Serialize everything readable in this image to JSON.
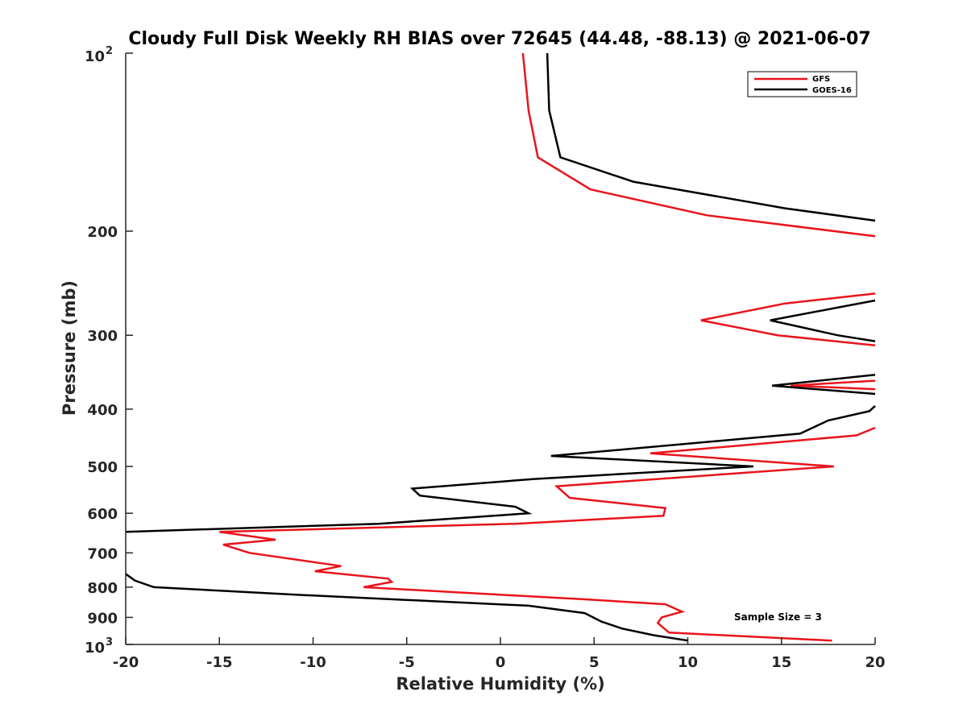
{
  "chart_data": {
    "type": "line",
    "title": "Cloudy Full Disk Weekly RH BIAS over 72645 (44.48, -88.13) @ 2021-06-07",
    "xlabel": "Relative Humidity (%)",
    "ylabel": "Pressure (mb)",
    "xlim": [
      -20,
      20
    ],
    "ylim": [
      100,
      1000
    ],
    "yscale": "log",
    "y_reversed": true,
    "grid": false,
    "legend_position": "top-right",
    "x_ticks": [
      -20,
      -15,
      -10,
      -5,
      0,
      5,
      10,
      15,
      20
    ],
    "x_tick_labels": [
      "-20",
      "-15",
      "-10",
      "-5",
      "0",
      "5",
      "10",
      "15",
      "20"
    ],
    "y_ticks": [
      {
        "value": 100,
        "base": "10",
        "exp": "2"
      },
      {
        "value": 200,
        "label": "200"
      },
      {
        "value": 300,
        "label": "300"
      },
      {
        "value": 400,
        "label": "400"
      },
      {
        "value": 500,
        "label": "500"
      },
      {
        "value": 600,
        "label": "600"
      },
      {
        "value": 700,
        "label": "700"
      },
      {
        "value": 800,
        "label": "800"
      },
      {
        "value": 900,
        "label": "900"
      },
      {
        "value": 1000,
        "base": "10",
        "exp": "3"
      }
    ],
    "annotation": "Sample Size = 3",
    "series": [
      {
        "name": "GFS",
        "color": "#e8141c",
        "points": [
          [
            1.2,
            100
          ],
          [
            1.5,
            125
          ],
          [
            2.0,
            150
          ],
          [
            4.8,
            170
          ],
          [
            11.0,
            188
          ],
          [
            20.0,
            204
          ],
          [
            null,
            null
          ],
          [
            20.0,
            255
          ],
          [
            15.2,
            265
          ],
          [
            10.7,
            283
          ],
          [
            14.8,
            300
          ],
          [
            20.0,
            312
          ],
          [
            null,
            null
          ],
          [
            20.0,
            370
          ],
          [
            15.5,
            365
          ],
          [
            20.0,
            358
          ],
          [
            null,
            null
          ],
          [
            20.0,
            430
          ],
          [
            19.0,
            443
          ],
          [
            8.0,
            475
          ],
          [
            17.8,
            500
          ],
          [
            3.0,
            540
          ],
          [
            3.7,
            565
          ],
          [
            8.8,
            588
          ],
          [
            8.7,
            606
          ],
          [
            0.8,
            625
          ],
          [
            -15.0,
            645
          ],
          [
            -12.0,
            665
          ],
          [
            -14.8,
            678
          ],
          [
            -13.4,
            700
          ],
          [
            -8.5,
            737
          ],
          [
            -9.9,
            752
          ],
          [
            -6.0,
            774
          ],
          [
            -5.8,
            784
          ],
          [
            -7.3,
            800
          ],
          [
            4.8,
            840
          ],
          [
            8.8,
            855
          ],
          [
            9.7,
            880
          ],
          [
            8.6,
            900
          ],
          [
            8.4,
            920
          ],
          [
            9.0,
            955
          ],
          [
            17.7,
            985
          ]
        ]
      },
      {
        "name": "GOES-16",
        "color": "#000000",
        "points": [
          [
            2.5,
            100
          ],
          [
            2.6,
            125
          ],
          [
            3.2,
            150
          ],
          [
            7.1,
            165
          ],
          [
            15.2,
            183
          ],
          [
            20.0,
            192
          ],
          [
            null,
            null
          ],
          [
            20.0,
            262
          ],
          [
            14.4,
            283
          ],
          [
            18.0,
            300
          ],
          [
            20.0,
            307
          ],
          [
            null,
            null
          ],
          [
            20.0,
            377
          ],
          [
            14.5,
            365
          ],
          [
            20.0,
            350
          ],
          [
            null,
            null
          ],
          [
            20.0,
            395
          ],
          [
            19.7,
            403
          ],
          [
            17.5,
            418
          ],
          [
            16.0,
            440
          ],
          [
            2.7,
            480
          ],
          [
            13.5,
            500
          ],
          [
            1.8,
            525
          ],
          [
            -4.7,
            545
          ],
          [
            -4.3,
            560
          ],
          [
            0.8,
            585
          ],
          [
            1.5,
            600
          ],
          [
            -6.5,
            625
          ],
          [
            -20.0,
            645
          ],
          [
            null,
            null
          ],
          [
            -20.0,
            760
          ],
          [
            -19.5,
            780
          ],
          [
            -18.5,
            800
          ],
          [
            -10.5,
            825
          ],
          [
            1.5,
            860
          ],
          [
            4.5,
            885
          ],
          [
            5.4,
            915
          ],
          [
            6.5,
            940
          ],
          [
            8.2,
            965
          ],
          [
            10.0,
            985
          ]
        ]
      }
    ]
  }
}
